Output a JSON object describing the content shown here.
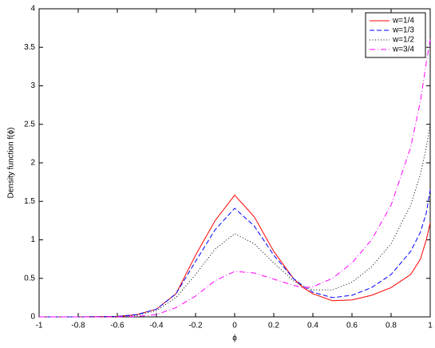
{
  "chart_data": {
    "type": "line",
    "xlabel": "ϕ",
    "ylabel": "Density function f(ϕ)",
    "x": [
      -1,
      -0.8,
      -0.6,
      -0.5,
      -0.4,
      -0.3,
      -0.2,
      -0.1,
      0,
      0.1,
      0.2,
      0.3,
      0.35,
      0.4,
      0.5,
      0.6,
      0.7,
      0.8,
      0.9,
      0.95,
      0.98,
      1
    ],
    "series": [
      {
        "name": "w=1/4",
        "color": "#ff0000",
        "dash": "solid",
        "values": [
          0,
          0,
          0.005,
          0.03,
          0.1,
          0.3,
          0.8,
          1.25,
          1.58,
          1.3,
          0.85,
          0.5,
          0.38,
          0.3,
          0.21,
          0.22,
          0.28,
          0.38,
          0.55,
          0.75,
          1.0,
          1.22
        ]
      },
      {
        "name": "w=1/3",
        "color": "#0000ff",
        "dash": "dashed",
        "values": [
          0,
          0,
          0.005,
          0.03,
          0.1,
          0.3,
          0.72,
          1.13,
          1.41,
          1.18,
          0.8,
          0.5,
          0.4,
          0.32,
          0.25,
          0.28,
          0.38,
          0.55,
          0.85,
          1.1,
          1.35,
          1.65
        ]
      },
      {
        "name": "w=1/2",
        "color": "#000000",
        "dash": "dotted",
        "values": [
          0,
          0,
          0.004,
          0.02,
          0.08,
          0.25,
          0.55,
          0.88,
          1.08,
          0.95,
          0.7,
          0.47,
          0.4,
          0.35,
          0.35,
          0.45,
          0.65,
          0.95,
          1.45,
          1.85,
          2.2,
          2.5
        ]
      },
      {
        "name": "w=3/4",
        "color": "#ff00ff",
        "dash": "dashdot",
        "values": [
          0,
          0,
          0.001,
          0.005,
          0.03,
          0.12,
          0.27,
          0.47,
          0.59,
          0.57,
          0.49,
          0.41,
          0.38,
          0.39,
          0.5,
          0.7,
          1.0,
          1.45,
          2.2,
          2.8,
          3.3,
          3.6
        ]
      }
    ],
    "xlim": [
      -1,
      1
    ],
    "xticks": [
      -1,
      -0.8,
      -0.6,
      -0.4,
      -0.2,
      0,
      0.2,
      0.4,
      0.6,
      0.8,
      1
    ],
    "ylim": [
      0,
      4
    ],
    "yticks": [
      0,
      0.5,
      1,
      1.5,
      2,
      2.5,
      3,
      3.5,
      4
    ],
    "grid": false,
    "legend": "upper right"
  }
}
